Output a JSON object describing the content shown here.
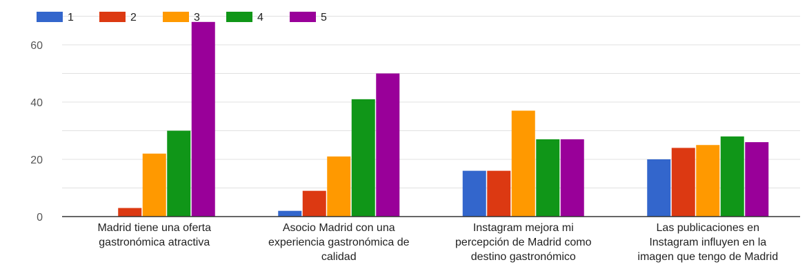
{
  "chart_data": {
    "type": "bar",
    "title": "",
    "xlabel": "",
    "ylabel": "",
    "ylim": [
      0,
      70
    ],
    "yticks": [
      0,
      20,
      40,
      60
    ],
    "grid": true,
    "legend_position": "top-left",
    "categories": [
      [
        "Madrid tiene una oferta",
        "gastronómica atractiva"
      ],
      [
        "Asocio Madrid con una",
        "experiencia gastronómica de",
        "calidad"
      ],
      [
        "Instagram mejora mi",
        "percepción de Madrid como",
        "destino gastronómico"
      ],
      [
        "Las publicaciones en",
        "Instagram influyen en la",
        "imagen que tengo de Madrid"
      ]
    ],
    "series": [
      {
        "name": "1",
        "color": "#3366cc",
        "values": [
          0,
          2,
          16,
          20
        ]
      },
      {
        "name": "2",
        "color": "#dc3912",
        "values": [
          3,
          9,
          16,
          24
        ]
      },
      {
        "name": "3",
        "color": "#ff9900",
        "values": [
          22,
          21,
          37,
          25
        ]
      },
      {
        "name": "4",
        "color": "#109618",
        "values": [
          30,
          41,
          27,
          28
        ]
      },
      {
        "name": "5",
        "color": "#990099",
        "values": [
          68,
          50,
          27,
          26
        ]
      }
    ]
  }
}
